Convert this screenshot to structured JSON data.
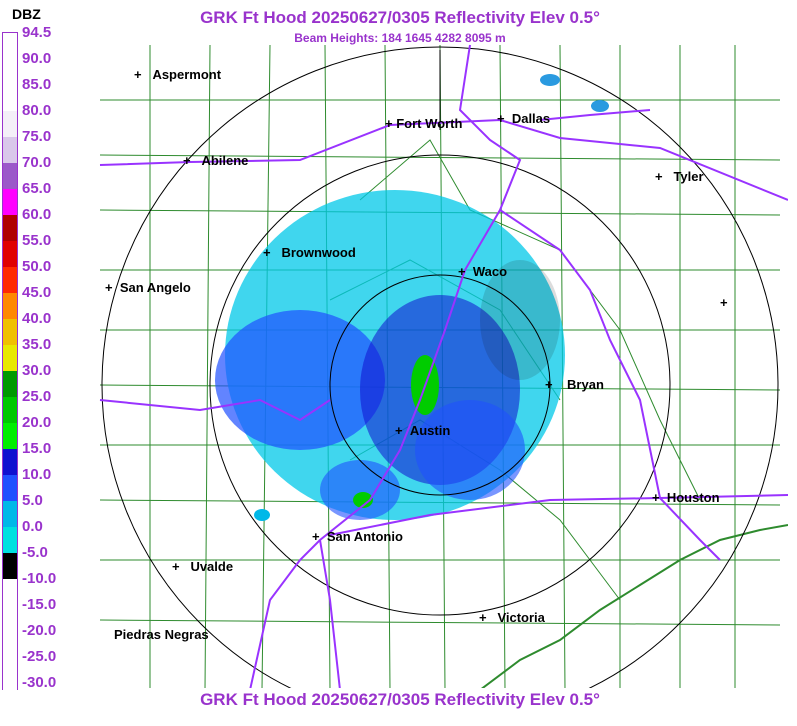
{
  "title": "GRK Ft Hood 20250627/0305 Reflectivity Elev 0.5°",
  "subtitle": "Beam Heights: 184 1645 4282 8095 m",
  "footer_title": "GRK Ft Hood 20250627/0305 Reflectivity Elev 0.5°",
  "legend": {
    "unit": "DBZ",
    "entries": [
      {
        "value": "94.5",
        "color": "#ffffff"
      },
      {
        "value": "90.0",
        "color": "#ffffff"
      },
      {
        "value": "85.0",
        "color": "#ffffff"
      },
      {
        "value": "80.0",
        "color": "#f4f0f8"
      },
      {
        "value": "75.0",
        "color": "#d9c8ea"
      },
      {
        "value": "70.0",
        "color": "#9b59c9"
      },
      {
        "value": "65.0",
        "color": "#ff00ff"
      },
      {
        "value": "60.0",
        "color": "#b00000"
      },
      {
        "value": "55.0",
        "color": "#e00000"
      },
      {
        "value": "50.0",
        "color": "#ff2a00"
      },
      {
        "value": "45.0",
        "color": "#ff8800"
      },
      {
        "value": "40.0",
        "color": "#f0c000"
      },
      {
        "value": "35.0",
        "color": "#e8e800"
      },
      {
        "value": "30.0",
        "color": "#009900"
      },
      {
        "value": "25.0",
        "color": "#00c800"
      },
      {
        "value": "20.0",
        "color": "#00ee00"
      },
      {
        "value": "15.0",
        "color": "#1010d0"
      },
      {
        "value": "10.0",
        "color": "#2050ff"
      },
      {
        "value": "5.0",
        "color": "#00b8e8"
      },
      {
        "value": "0.0",
        "color": "#00e0e0"
      },
      {
        "value": "-5.0",
        "color": "#000000"
      },
      {
        "value": "-10.0",
        "color": "#ffffff"
      },
      {
        "value": "-15.0",
        "color": "#ffffff"
      },
      {
        "value": "-20.0",
        "color": "#ffffff"
      },
      {
        "value": "-25.0",
        "color": "#ffffff"
      },
      {
        "value": "-30.0",
        "color": "#ffffff"
      }
    ]
  },
  "cities": [
    "Aspermont",
    "Fort Worth",
    "Dallas",
    "Abilene",
    "Tyler",
    "Brownwood",
    "Waco",
    "San Angelo",
    "Bryan",
    "Austin",
    "Houston",
    "San Antonio",
    "Uvalde",
    "Victoria",
    "Piedras Negras"
  ],
  "colors": {
    "accent": "#9933cc",
    "county_lines": "#2e8b2e",
    "roads": "#9933ff",
    "range_rings": "#000000"
  }
}
